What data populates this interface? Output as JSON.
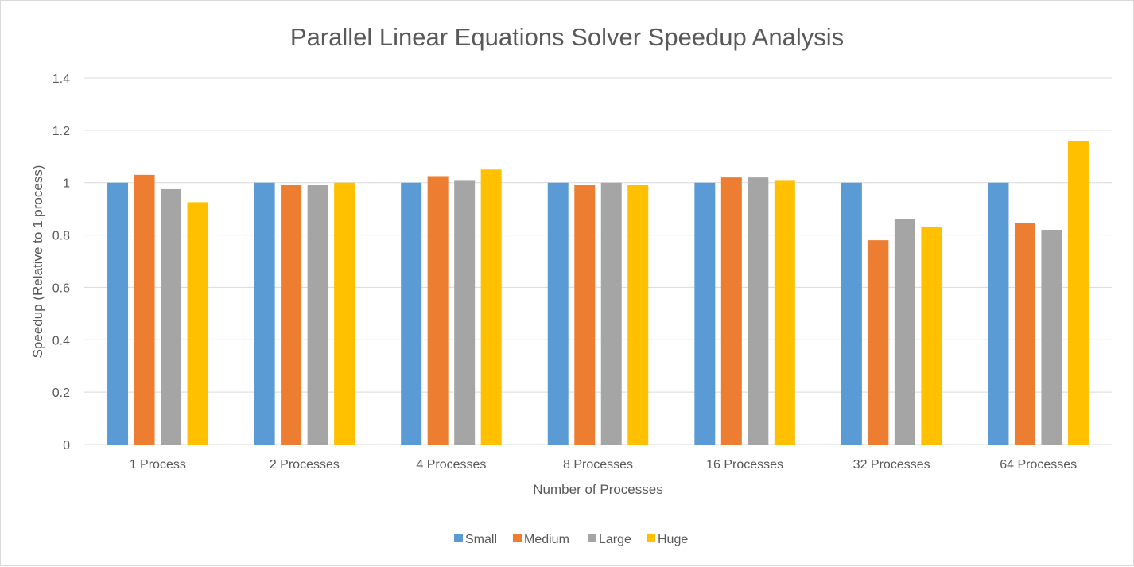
{
  "chart_data": {
    "type": "bar",
    "title": "Parallel Linear Equations Solver Speedup Analysis",
    "xlabel": "Number of Processes",
    "ylabel": "Speedup (Relative to 1 process)",
    "categories": [
      "1 Process",
      "2 Processes",
      "4 Processes",
      "8 Processes",
      "16 Processes",
      "32 Processes",
      "64 Processes"
    ],
    "ylim": [
      0,
      1.4
    ],
    "yticks": [
      0,
      0.2,
      0.4,
      0.6,
      0.8,
      1,
      1.2,
      1.4
    ],
    "ytick_labels": [
      "0",
      "0.2",
      "0.4",
      "0.6",
      "0.8",
      "1",
      "1.2",
      "1.4"
    ],
    "grid": true,
    "legend_position": "bottom",
    "series": [
      {
        "name": "Small",
        "color": "#5b9bd5",
        "values": [
          1.0,
          1.0,
          1.0,
          1.0,
          1.0,
          1.0,
          1.0
        ]
      },
      {
        "name": "Medium",
        "color": "#ed7d31",
        "values": [
          1.03,
          0.99,
          1.025,
          0.99,
          1.02,
          0.78,
          0.845
        ]
      },
      {
        "name": "Large",
        "color": "#a5a5a5",
        "values": [
          0.975,
          0.99,
          1.01,
          1.0,
          1.02,
          0.86,
          0.82
        ]
      },
      {
        "name": "Huge",
        "color": "#ffc000",
        "values": [
          0.925,
          1.0,
          1.05,
          0.99,
          1.01,
          0.83,
          1.16
        ]
      }
    ]
  }
}
